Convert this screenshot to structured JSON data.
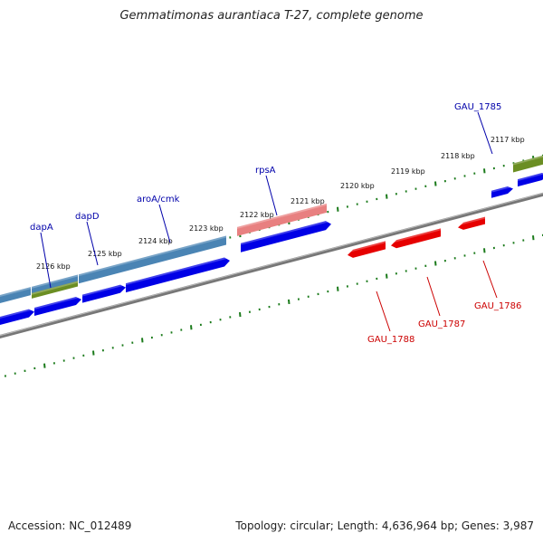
{
  "title": "Gemmatimonas aurantiaca T-27, complete genome",
  "footer": {
    "accession": "Accession: NC_012489",
    "summary": "Topology: circular; Length: 4,636,964 bp; Genes: 3,987"
  },
  "colors": {
    "forward_cds": "#0000e6",
    "reverse_cds": "#e60000",
    "gene_blue": "#4a84b4",
    "gene_olive": "#6b8e23",
    "gene_pink": "#e88080",
    "backbone": "#888888",
    "ticks": "#1a7a1a",
    "label_blue": "#0000aa",
    "label_red": "#cc0000"
  },
  "tick_labels": [
    "2126 kbp",
    "2125 kbp",
    "2124 kbp",
    "2123 kbp",
    "2122 kbp",
    "2121 kbp",
    "2120 kbp",
    "2119 kbp",
    "2118 kbp",
    "2117 kbp"
  ],
  "gene_labels": [
    {
      "text": "dapA",
      "color": "label_blue"
    },
    {
      "text": "dapD",
      "color": "label_blue"
    },
    {
      "text": "aroA/cmk",
      "color": "label_blue"
    },
    {
      "text": "rpsA",
      "color": "label_blue"
    },
    {
      "text": "GAU_1785",
      "color": "label_blue"
    },
    {
      "text": "GAU_1788",
      "color": "label_red"
    },
    {
      "text": "GAU_1787",
      "color": "label_red"
    },
    {
      "text": "GAU_1786",
      "color": "label_red"
    }
  ]
}
